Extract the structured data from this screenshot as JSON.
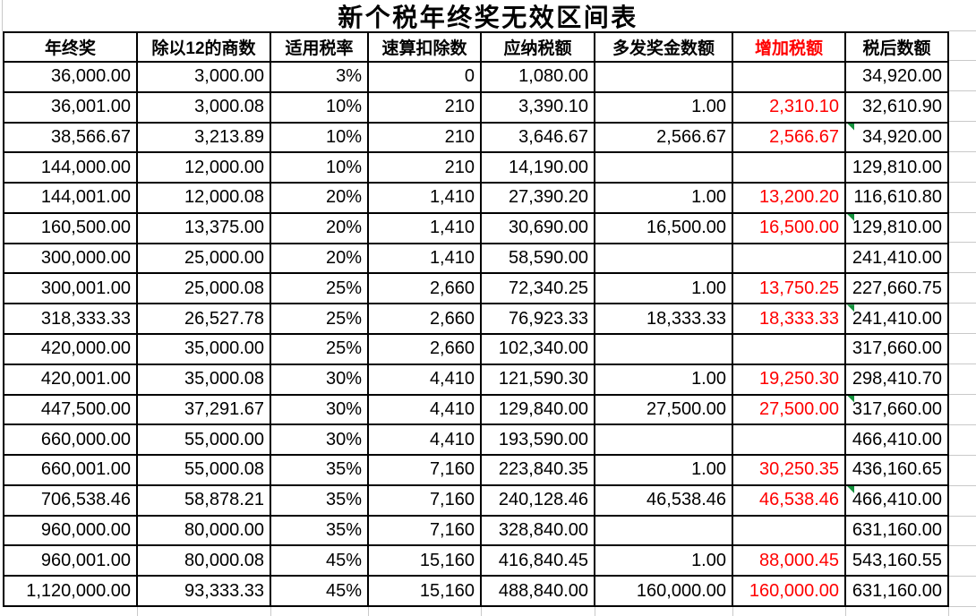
{
  "title": "新个税年终奖无效区间表",
  "colors": {
    "border": "#000000",
    "accent_red": "#FF0000",
    "error_triangle_green": "#15923D",
    "faint_gridline_grey": "#C9C9C9",
    "background": "#FFFFFF"
  },
  "chart_data": {
    "type": "table",
    "title": "新个税年终奖无效区间表",
    "columns": [
      "年终奖",
      "除以12的商数",
      "适用税率",
      "速算扣除数",
      "应纳税额",
      "多发奖金数额",
      "增加税额",
      "税后数额"
    ],
    "red_column_index": 6,
    "green_corner_rows": [
      2,
      5,
      8,
      11,
      14
    ],
    "rows": [
      [
        "36,000.00",
        "3,000.00",
        "3%",
        "0",
        "1,080.00",
        "",
        "",
        "34,920.00"
      ],
      [
        "36,001.00",
        "3,000.08",
        "10%",
        "210",
        "3,390.10",
        "1.00",
        "2,310.10",
        "32,610.90"
      ],
      [
        "38,566.67",
        "3,213.89",
        "10%",
        "210",
        "3,646.67",
        "2,566.67",
        "2,566.67",
        "34,920.00"
      ],
      [
        "144,000.00",
        "12,000.00",
        "10%",
        "210",
        "14,190.00",
        "",
        "",
        "129,810.00"
      ],
      [
        "144,001.00",
        "12,000.08",
        "20%",
        "1,410",
        "27,390.20",
        "1.00",
        "13,200.20",
        "116,610.80"
      ],
      [
        "160,500.00",
        "13,375.00",
        "20%",
        "1,410",
        "30,690.00",
        "16,500.00",
        "16,500.00",
        "129,810.00"
      ],
      [
        "300,000.00",
        "25,000.00",
        "20%",
        "1,410",
        "58,590.00",
        "",
        "",
        "241,410.00"
      ],
      [
        "300,001.00",
        "25,000.08",
        "25%",
        "2,660",
        "72,340.25",
        "1.00",
        "13,750.25",
        "227,660.75"
      ],
      [
        "318,333.33",
        "26,527.78",
        "25%",
        "2,660",
        "76,923.33",
        "18,333.33",
        "18,333.33",
        "241,410.00"
      ],
      [
        "420,000.00",
        "35,000.00",
        "25%",
        "2,660",
        "102,340.00",
        "",
        "",
        "317,660.00"
      ],
      [
        "420,001.00",
        "35,000.08",
        "30%",
        "4,410",
        "121,590.30",
        "1.00",
        "19,250.30",
        "298,410.70"
      ],
      [
        "447,500.00",
        "37,291.67",
        "30%",
        "4,410",
        "129,840.00",
        "27,500.00",
        "27,500.00",
        "317,660.00"
      ],
      [
        "660,000.00",
        "55,000.00",
        "30%",
        "4,410",
        "193,590.00",
        "",
        "",
        "466,410.00"
      ],
      [
        "660,001.00",
        "55,000.08",
        "35%",
        "7,160",
        "223,840.35",
        "1.00",
        "30,250.35",
        "436,160.65"
      ],
      [
        "706,538.46",
        "58,878.21",
        "35%",
        "7,160",
        "240,128.46",
        "46,538.46",
        "46,538.46",
        "466,410.00"
      ],
      [
        "960,000.00",
        "80,000.00",
        "35%",
        "7,160",
        "328,840.00",
        "",
        "",
        "631,160.00"
      ],
      [
        "960,001.00",
        "80,000.08",
        "45%",
        "15,160",
        "416,840.45",
        "1.00",
        "88,000.45",
        "543,160.55"
      ],
      [
        "1,120,000.00",
        "93,333.33",
        "45%",
        "15,160",
        "488,840.00",
        "160,000.00",
        "160,000.00",
        "631,160.00"
      ]
    ]
  }
}
